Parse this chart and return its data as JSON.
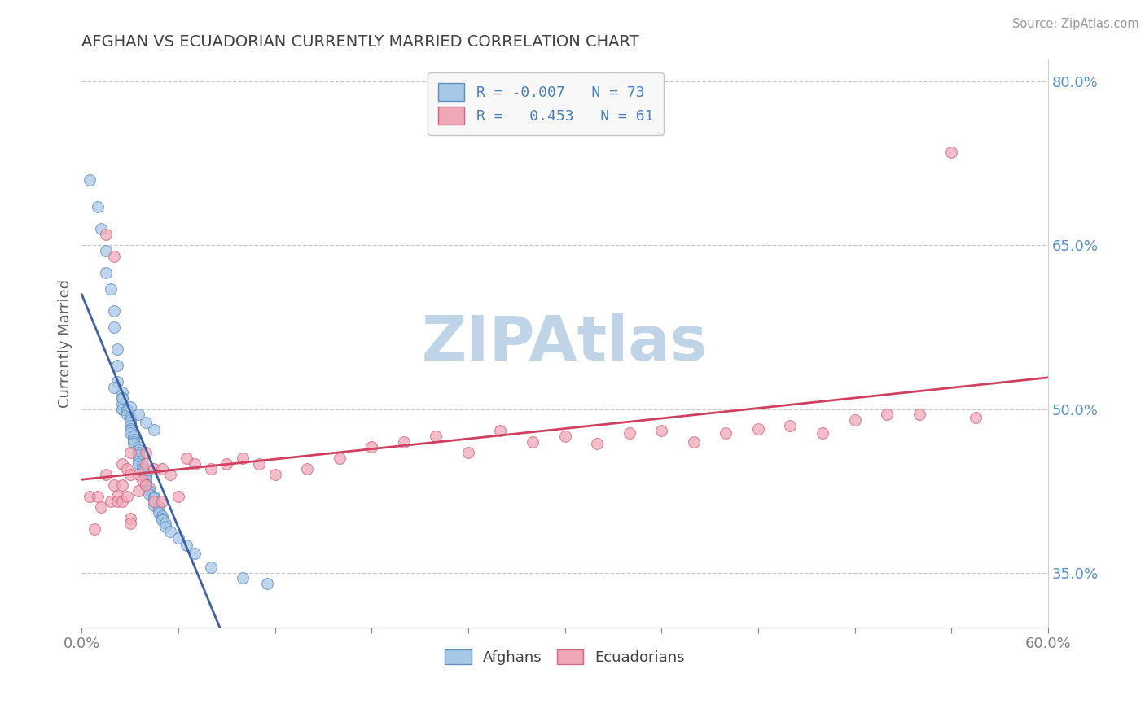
{
  "title": "AFGHAN VS ECUADORIAN CURRENTLY MARRIED CORRELATION CHART",
  "source": "Source: ZipAtlas.com",
  "ylabel": "Currently Married",
  "xlim": [
    0.0,
    0.6
  ],
  "ylim": [
    0.3,
    0.82
  ],
  "yticks_right": [
    0.35,
    0.5,
    0.65,
    0.8
  ],
  "ytick_labels_right": [
    "35.0%",
    "50.0%",
    "65.0%",
    "80.0%"
  ],
  "legend_line1": "R = -0.007   N = 73",
  "legend_line2": "R =   0.453   N = 61",
  "blue_fill": "#a8c8e8",
  "blue_edge": "#6090c0",
  "pink_fill": "#f0a8b8",
  "pink_edge": "#d06880",
  "blue_line_color": "#4060a0",
  "pink_line_color": "#d04060",
  "watermark": "ZIPAtlas",
  "watermark_color": "#c0d4e8",
  "background_color": "#ffffff",
  "grid_color": "#c8c8c8",
  "title_color": "#404040",
  "axis_label_color": "#606060",
  "tick_label_color": "#5a8fc4",
  "blue_scatter_x": [
    0.005,
    0.01,
    0.012,
    0.015,
    0.015,
    0.018,
    0.02,
    0.02,
    0.022,
    0.022,
    0.022,
    0.025,
    0.025,
    0.025,
    0.025,
    0.025,
    0.028,
    0.028,
    0.028,
    0.03,
    0.03,
    0.03,
    0.03,
    0.03,
    0.03,
    0.03,
    0.032,
    0.032,
    0.032,
    0.032,
    0.035,
    0.035,
    0.035,
    0.035,
    0.035,
    0.035,
    0.035,
    0.038,
    0.038,
    0.038,
    0.04,
    0.04,
    0.04,
    0.04,
    0.04,
    0.042,
    0.042,
    0.042,
    0.045,
    0.045,
    0.045,
    0.045,
    0.048,
    0.048,
    0.048,
    0.05,
    0.05,
    0.05,
    0.052,
    0.052,
    0.055,
    0.06,
    0.065,
    0.07,
    0.08,
    0.1,
    0.115,
    0.02,
    0.025,
    0.03,
    0.035,
    0.04,
    0.045
  ],
  "blue_scatter_y": [
    0.71,
    0.685,
    0.665,
    0.645,
    0.625,
    0.61,
    0.59,
    0.575,
    0.555,
    0.54,
    0.525,
    0.515,
    0.51,
    0.505,
    0.5,
    0.5,
    0.5,
    0.498,
    0.495,
    0.492,
    0.49,
    0.488,
    0.485,
    0.482,
    0.48,
    0.478,
    0.475,
    0.472,
    0.47,
    0.468,
    0.465,
    0.462,
    0.46,
    0.458,
    0.455,
    0.452,
    0.45,
    0.448,
    0.445,
    0.442,
    0.44,
    0.438,
    0.435,
    0.432,
    0.43,
    0.428,
    0.425,
    0.422,
    0.42,
    0.418,
    0.415,
    0.412,
    0.41,
    0.408,
    0.405,
    0.402,
    0.4,
    0.398,
    0.395,
    0.392,
    0.388,
    0.382,
    0.375,
    0.368,
    0.355,
    0.345,
    0.34,
    0.52,
    0.51,
    0.502,
    0.495,
    0.488,
    0.481
  ],
  "pink_scatter_x": [
    0.005,
    0.008,
    0.01,
    0.012,
    0.015,
    0.015,
    0.018,
    0.02,
    0.02,
    0.022,
    0.022,
    0.025,
    0.025,
    0.025,
    0.028,
    0.028,
    0.03,
    0.03,
    0.03,
    0.035,
    0.035,
    0.038,
    0.04,
    0.04,
    0.045,
    0.045,
    0.05,
    0.055,
    0.06,
    0.065,
    0.07,
    0.08,
    0.09,
    0.1,
    0.11,
    0.12,
    0.14,
    0.16,
    0.18,
    0.2,
    0.22,
    0.24,
    0.26,
    0.28,
    0.3,
    0.32,
    0.34,
    0.36,
    0.38,
    0.4,
    0.42,
    0.44,
    0.46,
    0.48,
    0.5,
    0.52,
    0.54,
    0.555,
    0.03,
    0.04,
    0.05
  ],
  "pink_scatter_y": [
    0.42,
    0.39,
    0.42,
    0.41,
    0.44,
    0.66,
    0.415,
    0.43,
    0.64,
    0.42,
    0.415,
    0.45,
    0.43,
    0.415,
    0.445,
    0.42,
    0.44,
    0.46,
    0.4,
    0.44,
    0.425,
    0.435,
    0.43,
    0.45,
    0.445,
    0.415,
    0.445,
    0.44,
    0.42,
    0.455,
    0.45,
    0.445,
    0.45,
    0.455,
    0.45,
    0.44,
    0.445,
    0.455,
    0.465,
    0.47,
    0.475,
    0.46,
    0.48,
    0.47,
    0.475,
    0.468,
    0.478,
    0.48,
    0.47,
    0.478,
    0.482,
    0.485,
    0.478,
    0.49,
    0.495,
    0.495,
    0.735,
    0.492,
    0.395,
    0.46,
    0.415
  ]
}
